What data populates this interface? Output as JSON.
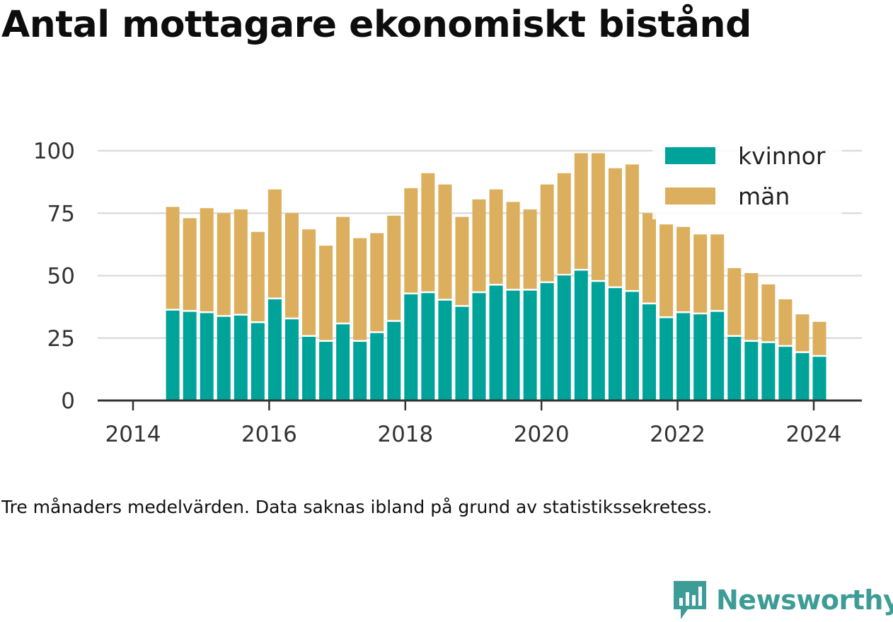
{
  "title": "Antal mottagare ekonomiskt bistånd",
  "caption": "Tre månaders medelvärden. Data saknas ibland på grund av statistikssekretess.",
  "brand": "Newsworthy",
  "colors": {
    "kvinnor": "#00a39a",
    "man": "#dbaf5d",
    "grid": "#dddddd",
    "axis": "#333333",
    "brand": "#3e9c96"
  },
  "chart_data": {
    "type": "bar",
    "stacked": true,
    "x_ticks": [
      "2014",
      "2016",
      "2018",
      "2020",
      "2022",
      "2024"
    ],
    "y_ticks": [
      "0",
      "25",
      "50",
      "75",
      "100"
    ],
    "ylim": [
      0,
      100
    ],
    "grid": true,
    "legend_position": "top-right",
    "x": [
      "2014-08",
      "2014-11",
      "2015-02",
      "2015-05",
      "2015-08",
      "2015-11",
      "2016-02",
      "2016-05",
      "2016-08",
      "2016-11",
      "2017-02",
      "2017-05",
      "2017-08",
      "2017-11",
      "2018-02",
      "2018-05",
      "2018-08",
      "2018-11",
      "2019-02",
      "2019-05",
      "2019-08",
      "2019-11",
      "2020-02",
      "2020-05",
      "2020-08",
      "2020-11",
      "2021-02",
      "2021-05",
      "2021-08",
      "2021-11",
      "2022-02",
      "2022-05",
      "2022-08",
      "2022-11",
      "2023-02",
      "2023-05",
      "2023-08",
      "2023-11",
      "2024-02"
    ],
    "series": [
      {
        "name": "kvinnor",
        "values": [
          36,
          35.5,
          35,
          33.5,
          34,
          31,
          40.5,
          32.5,
          25.5,
          23.5,
          30.5,
          23.5,
          27,
          31.5,
          42.5,
          43,
          40,
          37.5,
          43,
          46,
          44,
          44,
          47,
          50,
          52,
          47.5,
          45,
          43.5,
          38.5,
          33,
          35,
          34.5,
          35.5,
          25.5,
          23.5,
          23,
          21.5,
          19,
          17.5
        ]
      },
      {
        "name": "män",
        "values": [
          41.5,
          37.5,
          42,
          41.5,
          42.5,
          36.5,
          44,
          42.5,
          43,
          38.5,
          43,
          41.5,
          40,
          42.5,
          42.5,
          48,
          46.5,
          36,
          37.5,
          38.5,
          35.5,
          32.5,
          39.5,
          41,
          47,
          51.5,
          48,
          51,
          36.5,
          37.5,
          34.5,
          32,
          31,
          27.5,
          27.5,
          23.5,
          19,
          15.5,
          14
        ]
      }
    ]
  }
}
